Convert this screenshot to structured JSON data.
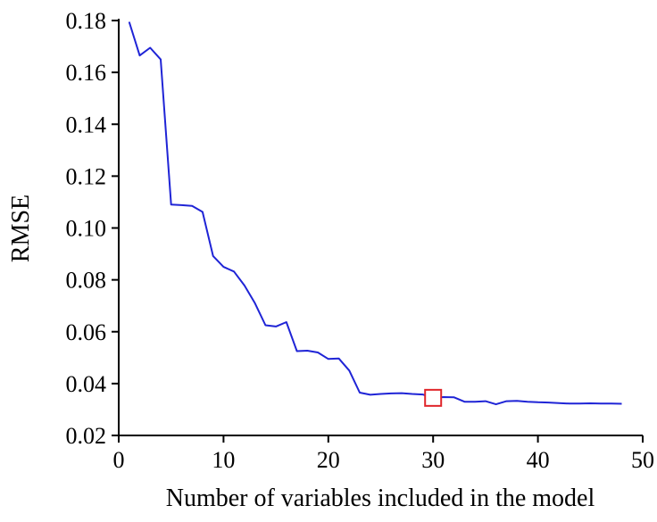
{
  "chart_data": {
    "type": "line",
    "title": "",
    "xlabel": "Number of variables included in the model",
    "ylabel": "RMSE",
    "xlim": [
      0,
      50
    ],
    "ylim": [
      0.02,
      0.18
    ],
    "xticks": [
      0,
      10,
      20,
      30,
      40,
      50
    ],
    "xtick_labels": [
      "0",
      "10",
      "20",
      "30",
      "40",
      "50"
    ],
    "yticks": [
      0.02,
      0.04,
      0.06,
      0.08,
      0.1,
      0.12,
      0.14,
      0.16,
      0.18
    ],
    "ytick_labels": [
      "0.02",
      "0.04",
      "0.06",
      "0.08",
      "0.10",
      "0.12",
      "0.14",
      "0.16",
      "0.18"
    ],
    "grid": false,
    "line_color": "#1f24d6",
    "marker_color": "#e0252a",
    "series": [
      {
        "x": [
          1,
          2,
          3,
          4,
          5,
          6,
          7,
          8,
          9,
          10,
          11,
          12,
          13,
          14,
          15,
          16,
          17,
          18,
          19,
          20,
          21,
          22,
          23,
          24,
          25,
          26,
          27,
          28,
          29,
          30,
          31,
          32,
          33,
          34,
          35,
          36,
          37,
          38,
          39,
          40,
          41,
          42,
          43,
          44,
          45,
          46,
          47,
          48
        ],
        "values": [
          0.1795,
          0.1665,
          0.1695,
          0.165,
          0.109,
          0.1088,
          0.1085,
          0.1062,
          0.0892,
          0.085,
          0.0832,
          0.0778,
          0.071,
          0.0625,
          0.062,
          0.0637,
          0.0525,
          0.0527,
          0.052,
          0.0495,
          0.0497,
          0.045,
          0.0365,
          0.0357,
          0.036,
          0.0362,
          0.0363,
          0.036,
          0.0358,
          0.0345,
          0.0348,
          0.0347,
          0.033,
          0.033,
          0.0332,
          0.032,
          0.0332,
          0.0333,
          0.033,
          0.0328,
          0.0327,
          0.0325,
          0.0323,
          0.0323,
          0.0324,
          0.0323,
          0.0323,
          0.0322
        ]
      }
    ],
    "highlight": {
      "x": 30,
      "y": 0.0345,
      "marker": "square"
    }
  }
}
